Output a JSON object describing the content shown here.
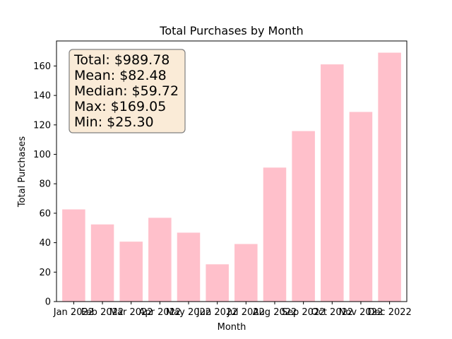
{
  "chart_data": {
    "type": "bar",
    "title": "Total Purchases by Month",
    "xlabel": "Month",
    "ylabel": "Total Purchases",
    "ylim": [
      0,
      177
    ],
    "yticks": [
      0,
      20,
      40,
      60,
      80,
      100,
      120,
      140,
      160
    ],
    "grid": false,
    "categories": [
      "Jan 2022",
      "Feb 2022",
      "Mar 2022",
      "Apr 2022",
      "May 2022",
      "Jun 2022",
      "Jul 2022",
      "Aug 2022",
      "Sep 2022",
      "Oct 2022",
      "Nov 2022",
      "Dec 2022"
    ],
    "values": [
      62.6,
      52.4,
      40.7,
      56.9,
      46.8,
      25.3,
      39.1,
      91.0,
      115.8,
      161.1,
      128.8,
      169.05
    ],
    "bar_color": "#ffc0cb",
    "annotation": {
      "placement": "top-left",
      "box_facecolor": "#faebd7",
      "box_edgecolor": "#7f7f7f",
      "lines": [
        "Total: $989.78",
        "Mean: $82.48",
        "Median: $59.72",
        "Max: $169.05",
        "Min: $25.30"
      ]
    }
  }
}
